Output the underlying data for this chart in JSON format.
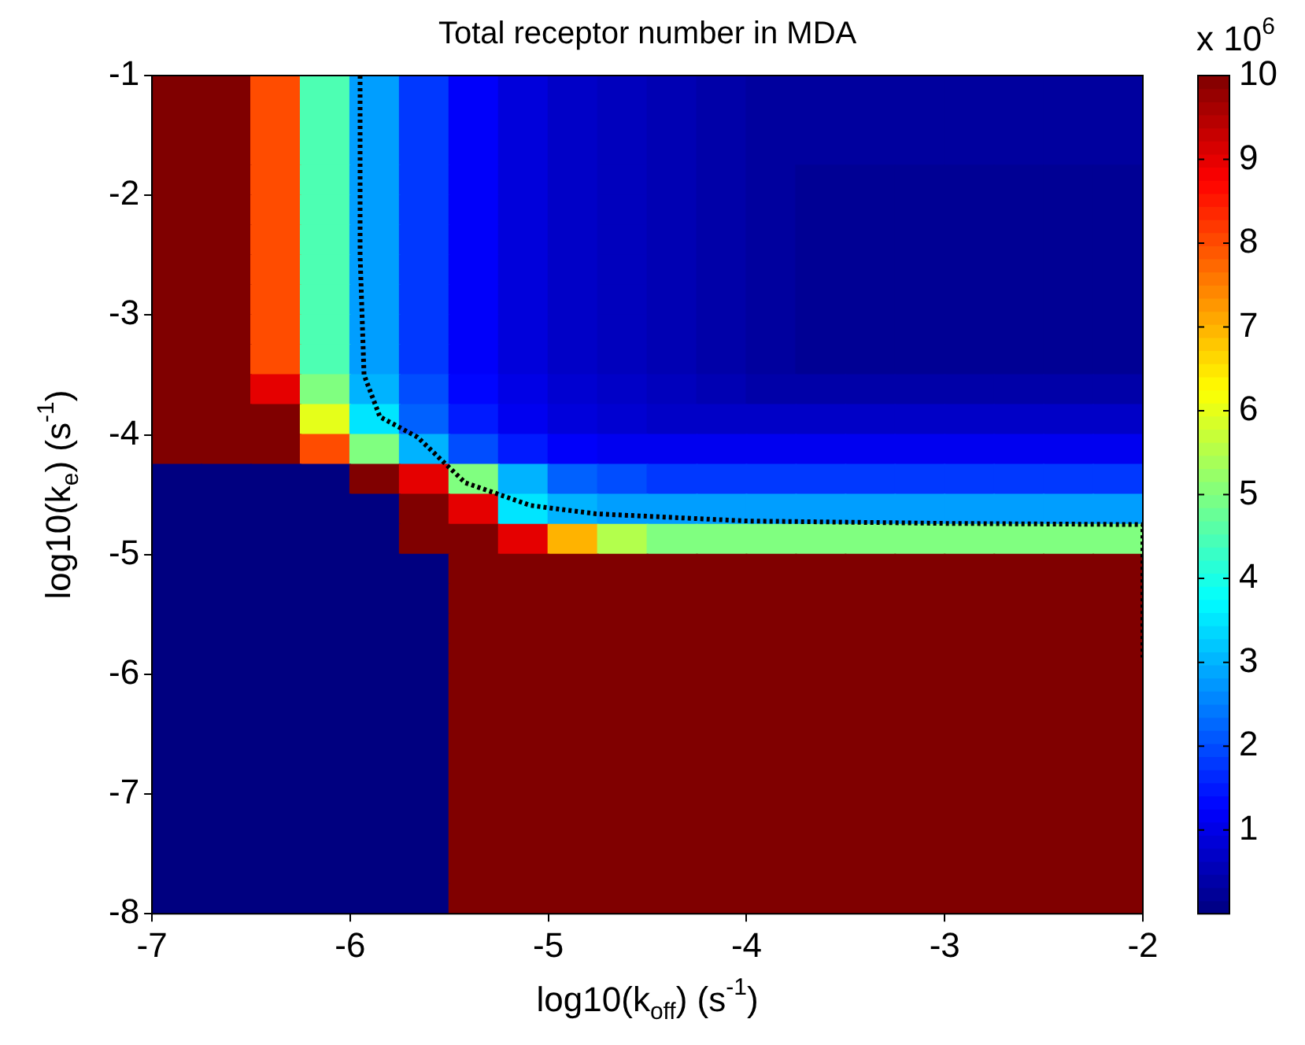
{
  "chart_data": {
    "type": "heatmap",
    "title": "Total receptor number in MDA",
    "xlabel": "log10(k$_{off}$) (s$^{-1}$)",
    "ylabel": "log10(k$_{e}$) (s$^{-1}$)",
    "clabel": "x 10$^{6}$",
    "xlim": [
      -7,
      -2
    ],
    "ylim": [
      -8,
      -1
    ],
    "xticks": [
      -7,
      -6,
      -5,
      -4,
      -3,
      -2
    ],
    "yticks": [
      -8,
      -7,
      -6,
      -5,
      -4,
      -3,
      -2,
      -1
    ],
    "clim": [
      0,
      10
    ],
    "cticks": [
      1,
      2,
      3,
      4,
      5,
      6,
      7,
      8,
      9,
      10
    ],
    "cells": [
      [
        10,
        10,
        8,
        4.5,
        2.8,
        1.8,
        1.2,
        0.9,
        0.7,
        0.6,
        0.5,
        0.4,
        0.3,
        0.3,
        0.3,
        0.3,
        0.3,
        0.3,
        0.3,
        0.3
      ],
      [
        10,
        10,
        8,
        4.5,
        2.8,
        1.8,
        1.2,
        0.9,
        0.7,
        0.6,
        0.5,
        0.4,
        0.3,
        0.3,
        0.3,
        0.3,
        0.3,
        0.3,
        0.3,
        0.3
      ],
      [
        10,
        10,
        8,
        4.5,
        2.8,
        1.8,
        1.2,
        0.9,
        0.7,
        0.6,
        0.5,
        0.4,
        0.3,
        0.3,
        0.3,
        0.3,
        0.3,
        0.3,
        0.3,
        0.3
      ],
      [
        10,
        10,
        8,
        4.5,
        2.8,
        1.8,
        1.2,
        0.9,
        0.7,
        0.6,
        0.5,
        0.4,
        0.3,
        0.2,
        0.2,
        0.2,
        0.2,
        0.2,
        0.2,
        0.2
      ],
      [
        10,
        10,
        8,
        4.5,
        2.8,
        1.8,
        1.2,
        0.9,
        0.7,
        0.6,
        0.5,
        0.4,
        0.3,
        0.2,
        0.2,
        0.2,
        0.2,
        0.2,
        0.2,
        0.2
      ],
      [
        10,
        10,
        8,
        4.5,
        2.8,
        1.8,
        1.2,
        0.9,
        0.7,
        0.6,
        0.5,
        0.4,
        0.3,
        0.2,
        0.2,
        0.2,
        0.2,
        0.2,
        0.2,
        0.2
      ],
      [
        10,
        10,
        8,
        4.5,
        2.8,
        1.8,
        1.2,
        0.9,
        0.7,
        0.6,
        0.5,
        0.4,
        0.3,
        0.2,
        0.2,
        0.2,
        0.2,
        0.2,
        0.2,
        0.2
      ],
      [
        10,
        10,
        8,
        4.5,
        2.8,
        1.8,
        1.2,
        0.9,
        0.7,
        0.6,
        0.5,
        0.4,
        0.3,
        0.2,
        0.2,
        0.2,
        0.2,
        0.2,
        0.2,
        0.2
      ],
      [
        10,
        10,
        8,
        4.5,
        2.8,
        1.8,
        1.2,
        0.9,
        0.7,
        0.6,
        0.5,
        0.4,
        0.3,
        0.2,
        0.2,
        0.2,
        0.2,
        0.2,
        0.2,
        0.2
      ],
      [
        10,
        10,
        8,
        4.5,
        2.8,
        1.8,
        1.2,
        0.9,
        0.7,
        0.6,
        0.5,
        0.4,
        0.3,
        0.2,
        0.2,
        0.2,
        0.2,
        0.2,
        0.2,
        0.2
      ],
      [
        10,
        10,
        9,
        5,
        3,
        2,
        1.3,
        1,
        0.8,
        0.7,
        0.6,
        0.5,
        0.4,
        0.4,
        0.4,
        0.4,
        0.4,
        0.4,
        0.4,
        0.4
      ],
      [
        10,
        10,
        10,
        6,
        3.5,
        2.2,
        1.5,
        1.1,
        0.9,
        0.8,
        0.7,
        0.7,
        0.7,
        0.7,
        0.7,
        0.7,
        0.7,
        0.7,
        0.7,
        0.7
      ],
      [
        10,
        10,
        10,
        8,
        5,
        3,
        2,
        1.5,
        1.2,
        1.1,
        1.1,
        1.1,
        1.1,
        1.1,
        1.1,
        1.1,
        1.1,
        1.1,
        1.1,
        1.1
      ],
      [
        0,
        0,
        0,
        0,
        10,
        9,
        5,
        3,
        2.2,
        2,
        1.8,
        1.8,
        1.8,
        1.8,
        1.8,
        1.8,
        1.8,
        1.8,
        1.8,
        1.8
      ],
      [
        0,
        0,
        0,
        0,
        0,
        10,
        9,
        3.5,
        3,
        2.8,
        2.8,
        2.8,
        2.8,
        2.8,
        2.8,
        2.8,
        2.8,
        2.8,
        2.8,
        2.8
      ],
      [
        0,
        0,
        0,
        0,
        0,
        10,
        10,
        9,
        7,
        5.5,
        5,
        5,
        5,
        5,
        5,
        5,
        5,
        5,
        5,
        5
      ],
      [
        0,
        0,
        0,
        0,
        0,
        0,
        10,
        10,
        10,
        10,
        10,
        10,
        10,
        10,
        10,
        10,
        10,
        10,
        10,
        10
      ],
      [
        0,
        0,
        0,
        0,
        0,
        0,
        10,
        10,
        10,
        10,
        10,
        10,
        10,
        10,
        10,
        10,
        10,
        10,
        10,
        10
      ],
      [
        0,
        0,
        0,
        0,
        0,
        0,
        10,
        10,
        10,
        10,
        10,
        10,
        10,
        10,
        10,
        10,
        10,
        10,
        10,
        10
      ],
      [
        0,
        0,
        0,
        0,
        0,
        0,
        10,
        10,
        10,
        10,
        10,
        10,
        10,
        10,
        10,
        10,
        10,
        10,
        10,
        10
      ],
      [
        0,
        0,
        0,
        0,
        0,
        0,
        10,
        10,
        10,
        10,
        10,
        10,
        10,
        10,
        10,
        10,
        10,
        10,
        10,
        10
      ],
      [
        0,
        0,
        0,
        0,
        0,
        0,
        10,
        10,
        10,
        10,
        10,
        10,
        10,
        10,
        10,
        10,
        10,
        10,
        10,
        10
      ],
      [
        0,
        0,
        0,
        0,
        0,
        0,
        10,
        10,
        10,
        10,
        10,
        10,
        10,
        10,
        10,
        10,
        10,
        10,
        10,
        10
      ],
      [
        0,
        0,
        0,
        0,
        0,
        0,
        10,
        10,
        10,
        10,
        10,
        10,
        10,
        10,
        10,
        10,
        10,
        10,
        10,
        10
      ],
      [
        0,
        0,
        0,
        0,
        0,
        0,
        10,
        10,
        10,
        10,
        10,
        10,
        10,
        10,
        10,
        10,
        10,
        10,
        10,
        10
      ],
      [
        0,
        0,
        0,
        0,
        0,
        0,
        10,
        10,
        10,
        10,
        10,
        10,
        10,
        10,
        10,
        10,
        10,
        10,
        10,
        10
      ],
      [
        0,
        0,
        0,
        0,
        0,
        0,
        10,
        10,
        10,
        10,
        10,
        10,
        10,
        10,
        10,
        10,
        10,
        10,
        10,
        10
      ],
      [
        0,
        0,
        0,
        0,
        0,
        0,
        10,
        10,
        10,
        10,
        10,
        10,
        10,
        10,
        10,
        10,
        10,
        10,
        10,
        10
      ]
    ],
    "series": [
      {
        "type": "line",
        "color": "#000000",
        "line_style": "dotted",
        "x": [
          -5.95,
          -5.95,
          -5.93,
          -5.85,
          -5.66,
          -5.42,
          -5.09,
          -4.76,
          -4.0,
          -3.0,
          -2.0,
          -2.0
        ],
        "values": [
          -1.0,
          -2.5,
          -3.5,
          -3.85,
          -4.02,
          -4.4,
          -4.59,
          -4.66,
          -4.72,
          -4.74,
          -4.75,
          -5.86
        ]
      }
    ]
  }
}
